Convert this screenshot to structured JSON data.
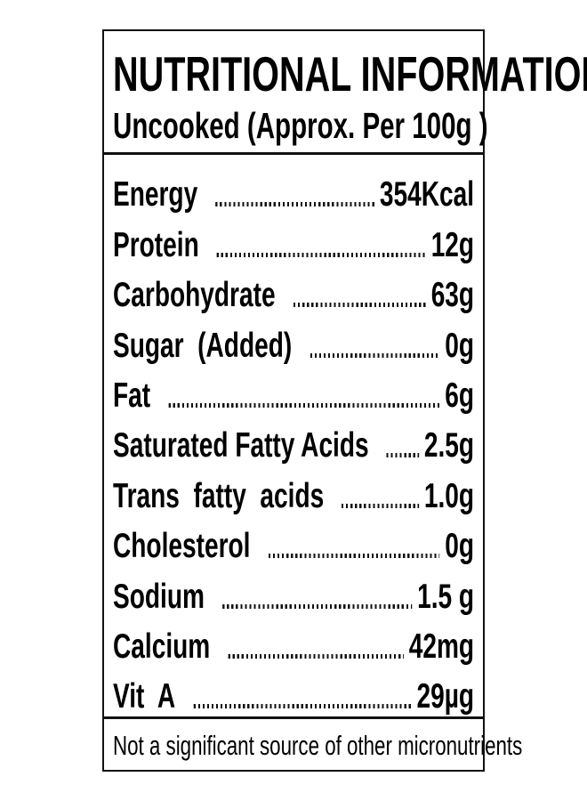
{
  "label": {
    "title": "NUTRITIONAL INFORMATION",
    "subtitle": "Uncooked (Approx. Per 100g )",
    "rows": [
      {
        "nutrient": "Energy",
        "value": "354Kcal"
      },
      {
        "nutrient": "Protein",
        "value": "12g"
      },
      {
        "nutrient": "Carbohydrate",
        "value": "63g"
      },
      {
        "nutrient": "Sugar  (Added)",
        "value": "0g"
      },
      {
        "nutrient": "Fat",
        "value": "6g"
      },
      {
        "nutrient": "Saturated Fatty Acids",
        "value": "2.5g"
      },
      {
        "nutrient": "Trans  fatty  acids",
        "value": "1.0g"
      },
      {
        "nutrient": "Cholesterol",
        "value": "0g"
      },
      {
        "nutrient": "Sodium",
        "value": "1.5 g"
      },
      {
        "nutrient": "Calcium",
        "value": "42mg"
      },
      {
        "nutrient": "Vit  A",
        "value": "29µg"
      }
    ],
    "footer": "Not a significant source of other micronutrients"
  }
}
